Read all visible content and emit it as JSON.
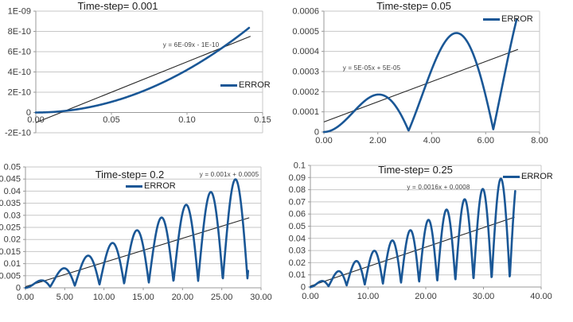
{
  "figure": {
    "background": "#ffffff",
    "colors": {
      "series": "#1a5796",
      "trendline": "#262626",
      "gridline": "#c7c7c7",
      "axis": "#999999",
      "tick_text": "#3a3a3a"
    }
  },
  "charts": [
    {
      "id": "ts-0.001",
      "title": "Time-step= 0.001",
      "legend_label": "ERROR",
      "equation": "y = 6E-09x - 1E-10",
      "chart_data": {
        "type": "line",
        "title": "Time-step= 0.001",
        "legend_entries": [
          "ERROR"
        ],
        "legend_position": "right-middle",
        "gridlines": "horizontal",
        "x_axis": {
          "min": 0,
          "max": 0.15,
          "tick_labels": [
            "0.00",
            "0.05",
            "0.10",
            "0.15"
          ]
        },
        "y_axis": {
          "min": -2e-10,
          "max": 1e-09,
          "tick_labels": [
            "1E-09",
            "8E-10",
            "6E-10",
            "4E-10",
            "2E-10",
            "0",
            "-2E-10"
          ]
        },
        "series": [
          {
            "name": "ERROR",
            "model": {
              "kind": "quadratic",
              "coefficient": 4.2e-08
            },
            "x_start": 0,
            "x_end": 0.141,
            "observed_points": [
              [
                0,
                0
              ],
              [
                0.05,
                1.1e-10
              ],
              [
                0.1,
                4.2e-10
              ],
              [
                0.141,
                8.3e-10
              ]
            ]
          }
        ],
        "trendline": {
          "type": "linear",
          "slope": 6e-09,
          "intercept": -1e-10,
          "x_start": 0,
          "x_end": 0.142,
          "equation_label": "y = 6E-09x - 1E-10"
        }
      }
    },
    {
      "id": "ts-0.05",
      "title": "Time-step= 0.05",
      "legend_label": "ERROR",
      "equation": "y = 5E-05x + 5E-05",
      "chart_data": {
        "type": "line",
        "title": "Time-step= 0.05",
        "legend_entries": [
          "ERROR"
        ],
        "legend_position": "top-right",
        "gridlines": "horizontal",
        "x_axis": {
          "min": 0,
          "max": 8,
          "tick_labels": [
            "0.00",
            "2.00",
            "4.00",
            "6.00",
            "8.00"
          ]
        },
        "y_axis": {
          "min": 0,
          "max": 0.0006,
          "tick_labels": [
            "0.0006",
            "0.0005",
            "0.0004",
            "0.0003",
            "0.0002",
            "0.0001",
            "0"
          ]
        },
        "series": [
          {
            "name": "ERROR",
            "model": {
              "kind": "abs_sine_growth",
              "amp_slope": 0.0001,
              "base_slope": 2e-06
            },
            "x_start": 0,
            "x_end": 7.15,
            "observed_peaks": [
              [
                2.0,
                0.00019
              ],
              [
                4.9,
                0.0005
              ]
            ],
            "observed_minima": [
              [
                3.15,
                0.0
              ],
              [
                6.3,
                1e-05
              ]
            ],
            "observed_end": [
              7.15,
              0.00055
            ]
          }
        ],
        "trendline": {
          "type": "linear",
          "slope": 5e-05,
          "intercept": 5e-05,
          "x_start": 0,
          "x_end": 7.2,
          "equation_label": "y = 5E-05x + 5E-05"
        }
      }
    },
    {
      "id": "ts-0.2",
      "title": "Time-step= 0.2",
      "legend_label": "ERROR",
      "equation": "y = 0.001x + 0.0005",
      "chart_data": {
        "type": "line",
        "title": "Time-step= 0.2",
        "legend_entries": [
          "ERROR"
        ],
        "legend_position": "below-title",
        "gridlines": "horizontal",
        "x_axis": {
          "min": 0,
          "max": 30,
          "tick_labels": [
            "0.00",
            "5.00",
            "10.00",
            "15.00",
            "20.00",
            "25.00",
            "30.00"
          ]
        },
        "y_axis": {
          "min": 0,
          "max": 0.05,
          "tick_labels": [
            "0.05",
            "0.045",
            "0.04",
            "0.035",
            "0.03",
            "0.025",
            "0.02",
            "0.015",
            "0.01",
            "0.005",
            "0"
          ]
        },
        "series": [
          {
            "name": "ERROR",
            "model": {
              "kind": "abs_sine_growth",
              "amp_slope": 0.00155,
              "base_slope": 0.00013
            },
            "x_start": 0,
            "x_end": 28.35,
            "observed_peaks": [
              [
                2,
                0.003
              ],
              [
                5,
                0.008
              ],
              [
                8,
                0.013
              ],
              [
                11,
                0.0185
              ],
              [
                14.1,
                0.024
              ],
              [
                17.3,
                0.029
              ],
              [
                20.4,
                0.034
              ],
              [
                23.6,
                0.0395
              ],
              [
                26.7,
                0.0445
              ]
            ]
          }
        ],
        "trendline": {
          "type": "linear",
          "slope": 0.001,
          "intercept": 0.0005,
          "x_start": 0,
          "x_end": 28.5,
          "equation_label": "y = 0.001x + 0.0005"
        }
      }
    },
    {
      "id": "ts-0.25",
      "title": "Time-step= 0.25",
      "legend_label": "ERROR",
      "equation": "y = 0.0016x + 0.0008",
      "chart_data": {
        "type": "line",
        "title": "Time-step= 0.25",
        "legend_entries": [
          "ERROR"
        ],
        "legend_position": "top-right",
        "gridlines": "horizontal",
        "x_axis": {
          "min": 0,
          "max": 40,
          "tick_labels": [
            "0.00",
            "10.00",
            "20.00",
            "30.00",
            "40.00"
          ]
        },
        "y_axis": {
          "min": 0,
          "max": 0.1,
          "tick_labels": [
            "0.1",
            "0.09",
            "0.08",
            "0.07",
            "0.06",
            "0.05",
            "0.04",
            "0.03",
            "0.02",
            "0.01",
            "0"
          ]
        },
        "series": [
          {
            "name": "ERROR",
            "model": {
              "kind": "abs_sine_growth",
              "amp_slope": 0.0025,
              "base_slope": 0.0002
            },
            "x_start": 0,
            "x_end": 35.5,
            "observed_peaks": [
              [
                2,
                0.005
              ],
              [
                5,
                0.012
              ],
              [
                8,
                0.021
              ],
              [
                11,
                0.029
              ],
              [
                14.1,
                0.037
              ],
              [
                17.2,
                0.0455
              ],
              [
                20.3,
                0.0535
              ],
              [
                23.5,
                0.0615
              ],
              [
                26.6,
                0.0695
              ],
              [
                29.8,
                0.078
              ],
              [
                32.9,
                0.0865
              ]
            ],
            "observed_end": [
              35.5,
              0.0785
            ]
          }
        ],
        "trendline": {
          "type": "linear",
          "slope": 0.0016,
          "intercept": 0.0008,
          "x_start": 0,
          "x_end": 35.4,
          "equation_label": "y = 0.0016x + 0.0008"
        }
      }
    }
  ]
}
